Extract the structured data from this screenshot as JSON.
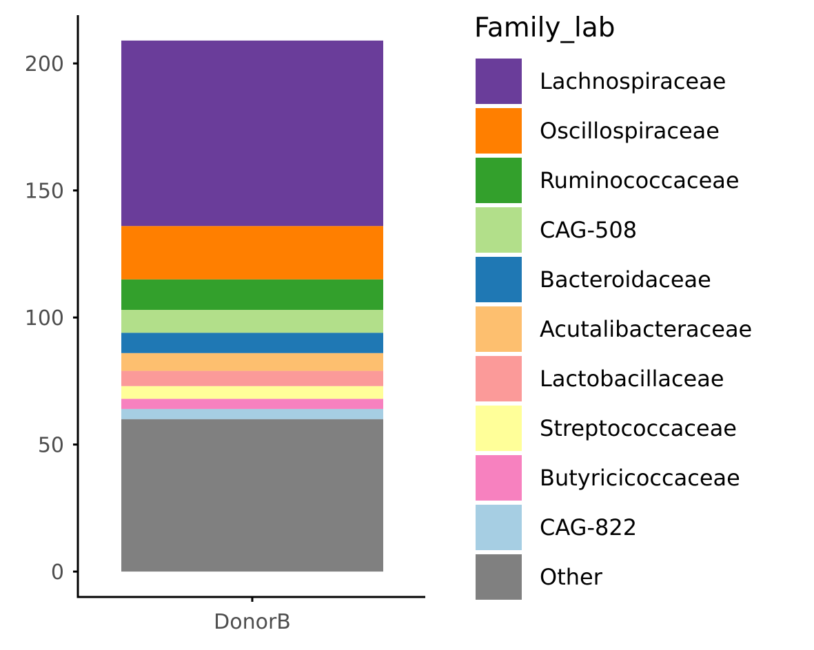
{
  "chart_data": {
    "type": "bar",
    "stacked": true,
    "categories": [
      "DonorB"
    ],
    "xlabel": "",
    "ylabel": "",
    "ylim": [
      -10,
      219
    ],
    "yticks": [
      0,
      50,
      100,
      150,
      200
    ],
    "grid": false,
    "legend": {
      "title": "Family_lab",
      "position": "right"
    },
    "series": [
      {
        "name": "Other",
        "values": [
          60
        ],
        "color": "#808080"
      },
      {
        "name": "CAG-822",
        "values": [
          4
        ],
        "color": "#A6CEE3"
      },
      {
        "name": "Butyricicoccaceae",
        "values": [
          4
        ],
        "color": "#F781BF"
      },
      {
        "name": "Streptococcaceae",
        "values": [
          5
        ],
        "color": "#FFFF99"
      },
      {
        "name": "Lactobacillaceae",
        "values": [
          6
        ],
        "color": "#FB9A99"
      },
      {
        "name": "Acutalibacteraceae",
        "values": [
          7
        ],
        "color": "#FDBF6F"
      },
      {
        "name": "Bacteroidaceae",
        "values": [
          8
        ],
        "color": "#1F78B4"
      },
      {
        "name": "CAG-508",
        "values": [
          9
        ],
        "color": "#B2DF8A"
      },
      {
        "name": "Ruminococcaceae",
        "values": [
          12
        ],
        "color": "#33A02C"
      },
      {
        "name": "Oscillospiraceae",
        "values": [
          21
        ],
        "color": "#FF7F00"
      },
      {
        "name": "Lachnospiraceae",
        "values": [
          73
        ],
        "color": "#6A3D9A"
      }
    ]
  }
}
